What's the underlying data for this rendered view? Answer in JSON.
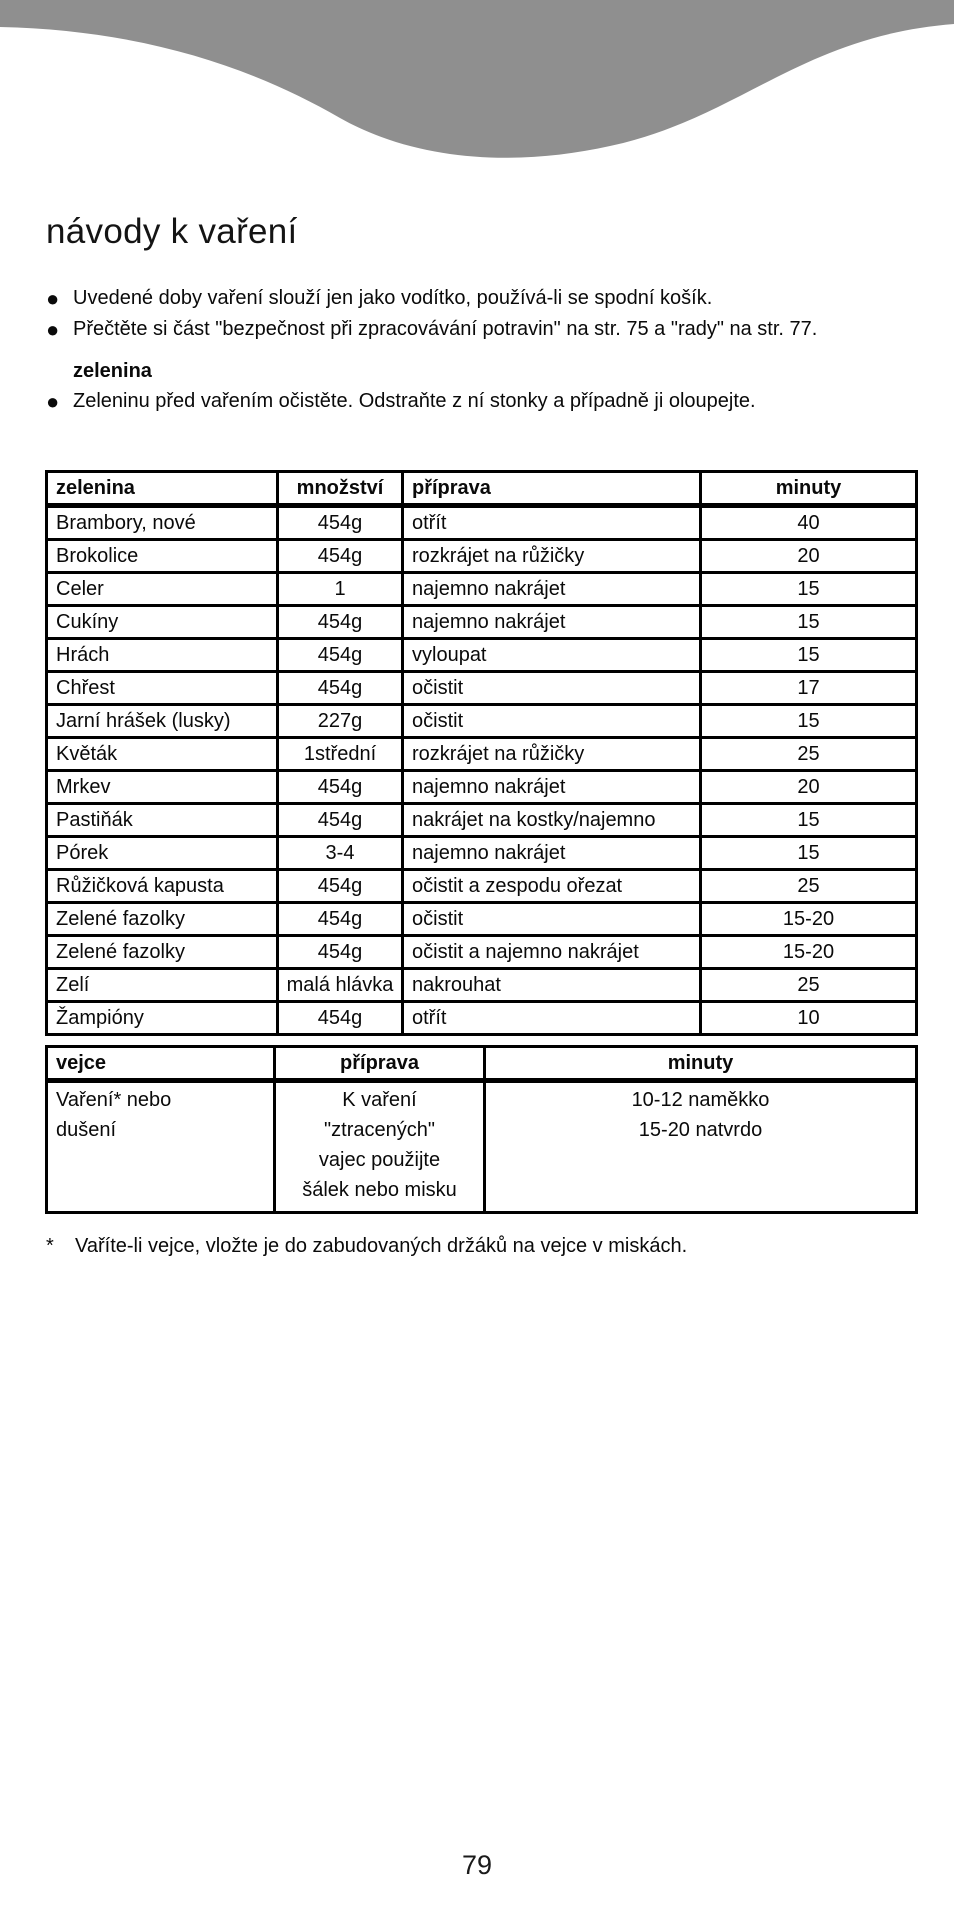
{
  "page": {
    "title": "návody k vaření",
    "page_number": "79",
    "accent_gray": "#8f8f8f",
    "bullet_glyph": "●"
  },
  "intro": {
    "bullet1": "Uvedené doby vaření slouží jen jako vodítko, používá-li se spodní košík.",
    "bullet2": "Přečtěte si část \"bezpečnost při zpracovávání potravin\" na str. 75 a \"rady\" na str. 77.",
    "subheading": "zelenina",
    "bullet3": "Zeleninu před vařením očistěte. Odstraňte z ní stonky a případně ji oloupejte."
  },
  "vegetable_table": {
    "headers": [
      "zelenina",
      "množství",
      "příprava",
      "minuty"
    ],
    "rows": [
      [
        "Brambory, nové",
        "454g",
        "otřít",
        "40"
      ],
      [
        "Brokolice",
        "454g",
        "rozkrájet na růžičky",
        "20"
      ],
      [
        "Celer",
        "1",
        "najemno nakrájet",
        "15"
      ],
      [
        "Cukíny",
        "454g",
        "najemno nakrájet",
        "15"
      ],
      [
        "Hrách",
        "454g",
        "vyloupat",
        "15"
      ],
      [
        "Chřest",
        "454g",
        "očistit",
        "17"
      ],
      [
        "Jarní hrášek (lusky)",
        "227g",
        "očistit",
        "15"
      ],
      [
        "Květák",
        "1střední",
        "rozkrájet na růžičky",
        "25"
      ],
      [
        "Mrkev",
        "454g",
        "najemno nakrájet",
        "20"
      ],
      [
        "Pastiňák",
        "454g",
        "nakrájet na kostky/najemno",
        "15"
      ],
      [
        "Pórek",
        "3-4",
        "najemno nakrájet",
        "15"
      ],
      [
        "Růžičková kapusta",
        "454g",
        "očistit a zespodu ořezat",
        "25"
      ],
      [
        "Zelené fazolky",
        "454g",
        "očistit",
        "15-20"
      ],
      [
        "Zelené fazolky",
        "454g",
        "očistit a najemno nakrájet",
        "15-20"
      ],
      [
        "Zelí",
        "malá hlávka",
        "nakrouhat",
        "25"
      ],
      [
        "Žampióny",
        "454g",
        "otřít",
        "10"
      ]
    ]
  },
  "egg_table": {
    "headers": [
      "vejce",
      "příprava",
      "minuty"
    ],
    "rows": [
      [
        "Vaření* nebo\ndušení",
        "K vaření\n\"ztracených\"\nvajec použijte\nšálek nebo misku",
        "10-12 naměkko\n15-20 natvrdo"
      ]
    ]
  },
  "footnote": {
    "marker": "*",
    "text": "Vaříte-li vejce, vložte je do zabudovaných držáků na vejce v miskách."
  }
}
